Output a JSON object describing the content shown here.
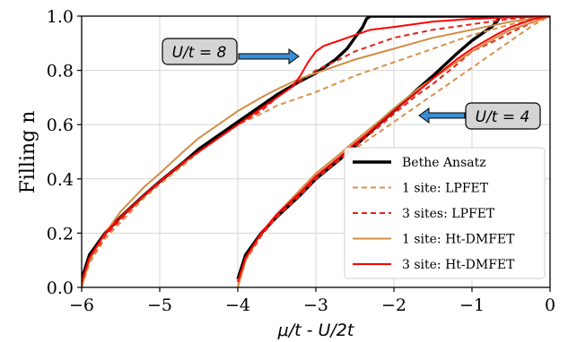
{
  "chart_data": {
    "type": "line",
    "xlabel": "μ/t - U/2t",
    "ylabel": "Filling n",
    "xlim": [
      -6,
      0
    ],
    "ylim": [
      0,
      1
    ],
    "xticks": [
      -6,
      -5,
      -4,
      -3,
      -2,
      -1,
      0
    ],
    "yticks": [
      0.0,
      0.2,
      0.4,
      0.6,
      0.8,
      1.0
    ],
    "xtick_labels": [
      "−6",
      "−5",
      "−4",
      "−3",
      "−2",
      "−1",
      "0"
    ],
    "ytick_labels": [
      "0.0",
      "0.2",
      "0.4",
      "0.6",
      "0.8",
      "1.0"
    ],
    "grid": true,
    "legend_position": "lower-right",
    "annotations": [
      {
        "text": "U/t = 8",
        "arrow": "right"
      },
      {
        "text": "U/t = 4",
        "arrow": "left"
      }
    ],
    "series": [
      {
        "name": "Bethe Ansatz",
        "color": "#000000",
        "style": "solid",
        "curves": [
          {
            "x": [
              -6,
              -5.9,
              -5.7,
              -5.5,
              -5.2,
              -5.0,
              -4.7,
              -4.5,
              -4.2,
              -4.0,
              -3.7,
              -3.5,
              -3.2,
              -3.0,
              -2.75,
              -2.6,
              -2.5,
              -2.4,
              -2.35,
              -2.3,
              -2.2,
              -2.0,
              -1.5,
              -1.0,
              -0.5,
              0
            ],
            "y": [
              0.03,
              0.12,
              0.2,
              0.26,
              0.34,
              0.39,
              0.46,
              0.51,
              0.57,
              0.61,
              0.67,
              0.71,
              0.76,
              0.79,
              0.84,
              0.88,
              0.92,
              0.96,
              0.99,
              1.0,
              1.0,
              1.0,
              1.0,
              1.0,
              1.0,
              1.0
            ]
          },
          {
            "x": [
              -4,
              -3.9,
              -3.7,
              -3.5,
              -3.2,
              -3.0,
              -2.7,
              -2.5,
              -2.2,
              -2.0,
              -1.7,
              -1.5,
              -1.2,
              -1.0,
              -0.85,
              -0.75,
              -0.68,
              -0.64,
              -0.6,
              -0.3,
              0
            ],
            "y": [
              0.03,
              0.12,
              0.2,
              0.26,
              0.34,
              0.4,
              0.47,
              0.52,
              0.6,
              0.65,
              0.73,
              0.78,
              0.86,
              0.91,
              0.94,
              0.96,
              0.98,
              1.0,
              1.0,
              1.0,
              1.0
            ]
          }
        ]
      },
      {
        "name": "1 site: LPFET",
        "color": "#d9914a",
        "style": "dashed",
        "curves": [
          {
            "x": [
              -6,
              -5.9,
              -5.7,
              -5.5,
              -5.2,
              -5.0,
              -4.7,
              -4.5,
              -4.2,
              -4.0,
              -3.7,
              -3.5,
              -3.2,
              -3.0,
              -2.5,
              -2.0,
              -1.5,
              -1.0,
              -0.5,
              0
            ],
            "y": [
              0.0,
              0.09,
              0.18,
              0.24,
              0.33,
              0.38,
              0.45,
              0.5,
              0.56,
              0.6,
              0.64,
              0.67,
              0.7,
              0.72,
              0.78,
              0.83,
              0.88,
              0.93,
              0.97,
              1.0
            ]
          },
          {
            "x": [
              -4,
              -3.9,
              -3.7,
              -3.5,
              -3.2,
              -3.0,
              -2.7,
              -2.5,
              -2.2,
              -2.0,
              -1.7,
              -1.5,
              -1.2,
              -1.0,
              -0.7,
              -0.5,
              -0.2,
              0
            ],
            "y": [
              0.0,
              0.1,
              0.19,
              0.26,
              0.34,
              0.4,
              0.47,
              0.51,
              0.57,
              0.61,
              0.67,
              0.71,
              0.77,
              0.81,
              0.87,
              0.91,
              0.97,
              1.0
            ]
          }
        ]
      },
      {
        "name": "3 sites: LPFET",
        "color": "#e8221b",
        "style": "dashed",
        "curves": [
          {
            "x": [
              -6,
              -5.9,
              -5.7,
              -5.5,
              -5.2,
              -5.0,
              -4.7,
              -4.5,
              -4.2,
              -4.0,
              -3.7,
              -3.5,
              -3.2,
              -3.0,
              -2.7,
              -2.5,
              -2.2,
              -2.0,
              -1.5,
              -1.0,
              -0.5,
              0
            ],
            "y": [
              0.0,
              0.1,
              0.19,
              0.25,
              0.34,
              0.39,
              0.46,
              0.5,
              0.56,
              0.6,
              0.65,
              0.7,
              0.76,
              0.8,
              0.84,
              0.87,
              0.9,
              0.92,
              0.95,
              0.97,
              0.99,
              1.0
            ]
          },
          {
            "x": [
              -4,
              -3.9,
              -3.7,
              -3.5,
              -3.2,
              -3.0,
              -2.7,
              -2.5,
              -2.2,
              -2.0,
              -1.7,
              -1.5,
              -1.2,
              -1.0,
              -0.7,
              -0.5,
              -0.2,
              0
            ],
            "y": [
              0.0,
              0.1,
              0.19,
              0.26,
              0.34,
              0.4,
              0.47,
              0.52,
              0.59,
              0.64,
              0.71,
              0.75,
              0.82,
              0.87,
              0.91,
              0.94,
              0.98,
              1.0
            ]
          }
        ]
      },
      {
        "name": "1 site: Ht-DMFET",
        "color": "#d38c44",
        "style": "solid",
        "curves": [
          {
            "x": [
              -6,
              -5.9,
              -5.7,
              -5.5,
              -5.2,
              -5.0,
              -4.7,
              -4.5,
              -4.2,
              -4.0,
              -3.7,
              -3.5,
              -3.2,
              -3.0,
              -2.5,
              -2.0,
              -1.5,
              -1.0,
              -0.5,
              0
            ],
            "y": [
              0.0,
              0.1,
              0.2,
              0.28,
              0.37,
              0.42,
              0.5,
              0.55,
              0.61,
              0.65,
              0.7,
              0.73,
              0.77,
              0.79,
              0.84,
              0.88,
              0.92,
              0.95,
              0.98,
              1.0
            ]
          },
          {
            "x": [
              -4,
              -3.9,
              -3.7,
              -3.5,
              -3.2,
              -3.0,
              -2.7,
              -2.5,
              -2.2,
              -2.0,
              -1.7,
              -1.5,
              -1.2,
              -1.0,
              -0.7,
              -0.5,
              -0.2,
              0
            ],
            "y": [
              0.0,
              0.1,
              0.2,
              0.27,
              0.36,
              0.42,
              0.49,
              0.54,
              0.61,
              0.66,
              0.73,
              0.77,
              0.83,
              0.87,
              0.92,
              0.95,
              0.98,
              1.0
            ]
          }
        ]
      },
      {
        "name": "3 site: Ht-DMFET",
        "color": "#ff0000",
        "style": "solid",
        "curves": [
          {
            "x": [
              -6,
              -5.9,
              -5.7,
              -5.5,
              -5.2,
              -5.0,
              -4.7,
              -4.5,
              -4.2,
              -4.0,
              -3.7,
              -3.5,
              -3.3,
              -3.2,
              -3.1,
              -3.0,
              -2.9,
              -2.8,
              -2.7,
              -2.5,
              -2.3,
              -2.0,
              -1.5,
              -1.0,
              -0.5,
              0
            ],
            "y": [
              0.02,
              0.11,
              0.2,
              0.26,
              0.34,
              0.39,
              0.46,
              0.5,
              0.56,
              0.6,
              0.66,
              0.7,
              0.74,
              0.78,
              0.83,
              0.87,
              0.89,
              0.9,
              0.91,
              0.93,
              0.95,
              0.96,
              0.98,
              0.99,
              0.995,
              1.0
            ]
          },
          {
            "x": [
              -4,
              -3.9,
              -3.7,
              -3.5,
              -3.2,
              -3.0,
              -2.7,
              -2.5,
              -2.2,
              -2.0,
              -1.7,
              -1.5,
              -1.2,
              -1.0,
              -0.7,
              -0.5,
              -0.2,
              0
            ],
            "y": [
              0.02,
              0.11,
              0.2,
              0.27,
              0.35,
              0.41,
              0.48,
              0.53,
              0.6,
              0.65,
              0.72,
              0.77,
              0.84,
              0.88,
              0.93,
              0.96,
              0.99,
              1.0
            ]
          }
        ]
      }
    ]
  }
}
